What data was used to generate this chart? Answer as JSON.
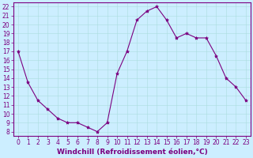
{
  "x": [
    0,
    1,
    2,
    3,
    4,
    5,
    6,
    7,
    8,
    9,
    10,
    11,
    12,
    13,
    14,
    15,
    16,
    17,
    18,
    19,
    20,
    21,
    22,
    23
  ],
  "y": [
    17,
    13.5,
    11.5,
    10.5,
    9.5,
    9,
    9,
    8.5,
    8,
    9,
    14.5,
    17,
    20.5,
    21.5,
    22,
    20.5,
    18.5,
    19,
    18.5,
    18.5,
    16.5,
    14,
    13,
    11.5
  ],
  "line_color": "#7B0080",
  "marker": "*",
  "marker_size": 3,
  "bg_color": "#cceeff",
  "grid_color": "#aadddd",
  "xlabel": "Windchill (Refroidissement éolien,°C)",
  "xlim": [
    -0.5,
    23.5
  ],
  "ylim": [
    7.5,
    22.5
  ],
  "yticks": [
    8,
    9,
    10,
    11,
    12,
    13,
    14,
    15,
    16,
    17,
    18,
    19,
    20,
    21,
    22
  ],
  "xticks": [
    0,
    1,
    2,
    3,
    4,
    5,
    6,
    7,
    8,
    9,
    10,
    11,
    12,
    13,
    14,
    15,
    16,
    17,
    18,
    19,
    20,
    21,
    22,
    23
  ],
  "tick_fontsize": 5.5,
  "xlabel_fontsize": 6.5,
  "axis_color": "#7B0080",
  "spine_color": "#7B0080",
  "linewidth": 0.8
}
